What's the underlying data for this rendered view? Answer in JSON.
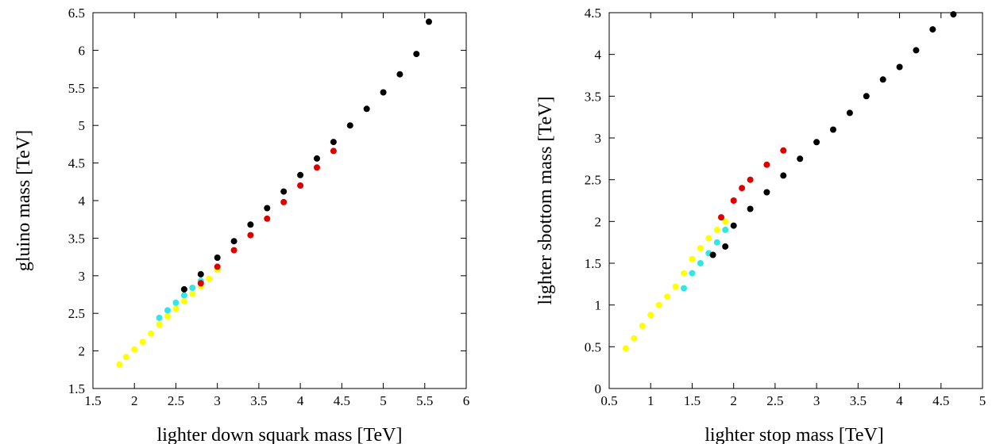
{
  "chart_data": [
    {
      "type": "scatter",
      "title": "",
      "xlabel": "lighter down squark mass [TeV]",
      "ylabel": "gluino mass [TeV]",
      "xlim": [
        1.5,
        6
      ],
      "ylim": [
        1.5,
        6.5
      ],
      "xticks": [
        "1.5",
        "2",
        "2.5",
        "3",
        "3.5",
        "4",
        "4.5",
        "5",
        "5.5",
        "6"
      ],
      "yticks": [
        "1.5",
        "2",
        "2.5",
        "3",
        "3.5",
        "4",
        "4.5",
        "5",
        "5.5",
        "6",
        "6.5"
      ],
      "grid": false,
      "colors": {
        "yellow": "#ffff00",
        "cyan": "#33e6e6",
        "red": "#dd0000",
        "black": "#000000"
      },
      "series": [
        {
          "color": "#ffff00",
          "x": [
            1.82,
            1.9,
            2.0,
            2.1,
            2.2,
            2.3,
            2.4,
            2.5,
            2.6,
            2.7,
            2.8,
            2.9,
            3.0
          ],
          "y": [
            1.82,
            1.92,
            2.02,
            2.12,
            2.23,
            2.35,
            2.46,
            2.56,
            2.66,
            2.76,
            2.86,
            2.96,
            3.08
          ]
        },
        {
          "color": "#33e6e6",
          "x": [
            2.3,
            2.4,
            2.5,
            2.6,
            2.7,
            2.8
          ],
          "y": [
            2.44,
            2.54,
            2.64,
            2.74,
            2.84,
            2.93
          ]
        },
        {
          "color": "#dd0000",
          "x": [
            2.8,
            3.0,
            3.2,
            3.4,
            3.6,
            3.8,
            4.0,
            4.2,
            4.4
          ],
          "y": [
            2.9,
            3.12,
            3.34,
            3.54,
            3.76,
            3.98,
            4.2,
            4.44,
            4.66
          ]
        },
        {
          "color": "#000000",
          "x": [
            2.6,
            2.8,
            3.0,
            3.2,
            3.4,
            3.6,
            3.8,
            4.0,
            4.2,
            4.4,
            4.6,
            4.8,
            5.0,
            5.2,
            5.4,
            5.55
          ],
          "y": [
            2.82,
            3.02,
            3.24,
            3.46,
            3.68,
            3.9,
            4.12,
            4.34,
            4.56,
            4.78,
            5.0,
            5.22,
            5.44,
            5.68,
            5.95,
            6.38
          ]
        }
      ]
    },
    {
      "type": "scatter",
      "title": "",
      "xlabel": "lighter stop mass [TeV]",
      "ylabel": "lighter sbottom mass [TeV]",
      "xlim": [
        0.5,
        5
      ],
      "ylim": [
        0,
        4.5
      ],
      "xticks": [
        "0.5",
        "1",
        "1.5",
        "2",
        "2.5",
        "3",
        "3.5",
        "4",
        "4.5",
        "5"
      ],
      "yticks": [
        "0",
        "0.5",
        "1",
        "1.5",
        "2",
        "2.5",
        "3",
        "3.5",
        "4",
        "4.5"
      ],
      "grid": false,
      "colors": {
        "yellow": "#ffff00",
        "cyan": "#33e6e6",
        "red": "#dd0000",
        "black": "#000000"
      },
      "series": [
        {
          "color": "#ffff00",
          "x": [
            0.7,
            0.8,
            0.9,
            1.0,
            1.1,
            1.2,
            1.3,
            1.4,
            1.5,
            1.6,
            1.7,
            1.8,
            1.9
          ],
          "y": [
            0.48,
            0.6,
            0.75,
            0.88,
            1.0,
            1.1,
            1.22,
            1.38,
            1.55,
            1.68,
            1.8,
            1.9,
            2.0
          ]
        },
        {
          "color": "#33e6e6",
          "x": [
            1.4,
            1.5,
            1.6,
            1.7,
            1.8,
            1.9
          ],
          "y": [
            1.2,
            1.38,
            1.5,
            1.62,
            1.75,
            1.9
          ]
        },
        {
          "color": "#dd0000",
          "x": [
            1.85,
            2.0,
            2.1,
            2.2,
            2.4,
            2.6
          ],
          "y": [
            2.05,
            2.25,
            2.4,
            2.5,
            2.68,
            2.85
          ]
        },
        {
          "color": "#000000",
          "x": [
            1.75,
            1.9,
            2.0,
            2.2,
            2.4,
            2.6,
            2.8,
            3.0,
            3.2,
            3.4,
            3.6,
            3.8,
            4.0,
            4.2,
            4.4,
            4.65
          ],
          "y": [
            1.6,
            1.7,
            1.95,
            2.15,
            2.35,
            2.55,
            2.75,
            2.95,
            3.1,
            3.3,
            3.5,
            3.7,
            3.85,
            4.05,
            4.3,
            4.48
          ]
        }
      ]
    }
  ]
}
